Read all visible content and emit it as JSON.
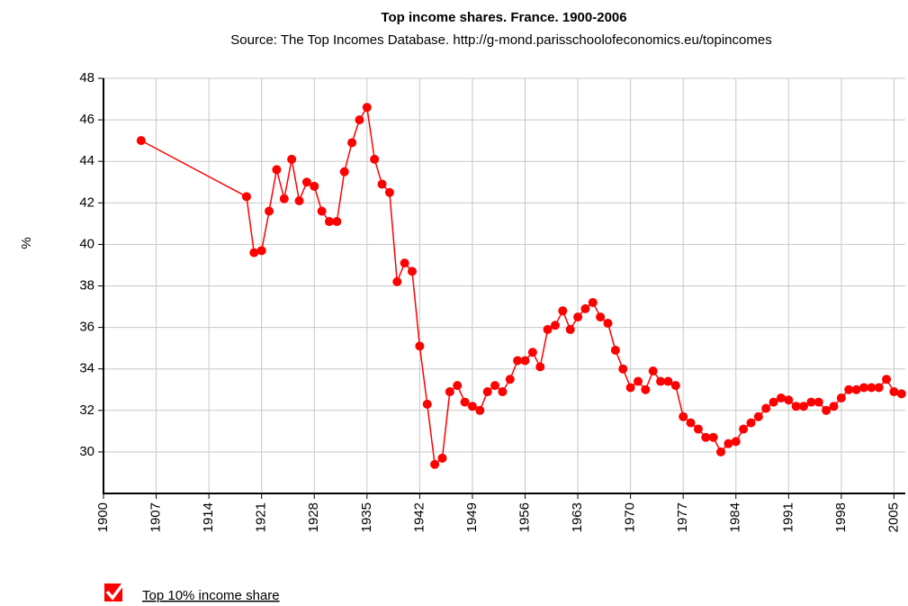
{
  "chart_data": {
    "type": "line",
    "title": "Top income shares. France. 1900-2006",
    "subtitle": "Source: The Top Incomes Database. http://g-mond.parisschoolofeconomics.eu/topincomes",
    "y_label": "%",
    "x": [
      1905,
      1919,
      1920,
      1921,
      1922,
      1923,
      1924,
      1925,
      1926,
      1927,
      1928,
      1929,
      1930,
      1931,
      1932,
      1933,
      1934,
      1935,
      1936,
      1937,
      1938,
      1939,
      1940,
      1941,
      1942,
      1943,
      1944,
      1945,
      1946,
      1947,
      1948,
      1949,
      1950,
      1951,
      1952,
      1953,
      1954,
      1955,
      1956,
      1957,
      1958,
      1959,
      1960,
      1961,
      1962,
      1963,
      1964,
      1965,
      1966,
      1967,
      1968,
      1969,
      1970,
      1971,
      1972,
      1973,
      1974,
      1975,
      1976,
      1977,
      1978,
      1979,
      1980,
      1981,
      1982,
      1983,
      1984,
      1985,
      1986,
      1987,
      1988,
      1989,
      1990,
      1991,
      1992,
      1993,
      1994,
      1995,
      1996,
      1997,
      1998,
      1999,
      2000,
      2001,
      2002,
      2003,
      2004,
      2005,
      2006
    ],
    "series": [
      {
        "name": "Top 10% income share",
        "color": "#ff0000",
        "values": [
          45.0,
          42.3,
          39.6,
          39.7,
          41.6,
          43.6,
          42.2,
          44.1,
          42.1,
          43.0,
          42.8,
          41.6,
          41.1,
          41.1,
          43.5,
          44.9,
          46.0,
          46.6,
          44.1,
          42.9,
          42.5,
          38.2,
          39.1,
          38.7,
          35.1,
          32.3,
          29.4,
          29.7,
          32.9,
          33.2,
          32.4,
          32.2,
          32.0,
          32.9,
          33.2,
          32.9,
          33.5,
          34.4,
          34.4,
          34.8,
          34.1,
          35.9,
          36.1,
          36.8,
          35.9,
          36.5,
          36.9,
          37.2,
          36.5,
          36.2,
          34.9,
          34.0,
          33.1,
          33.4,
          33.0,
          33.9,
          33.4,
          33.4,
          33.2,
          31.7,
          31.4,
          31.1,
          30.7,
          30.7,
          30.0,
          30.4,
          30.5,
          31.1,
          31.4,
          31.7,
          32.1,
          32.4,
          32.6,
          32.5,
          32.2,
          32.2,
          32.4,
          32.4,
          32.0,
          32.2,
          32.6,
          33.0,
          33.0,
          33.1,
          33.1,
          33.1,
          33.5,
          32.9,
          32.8
        ]
      }
    ],
    "xlim": [
      1900,
      2006.5
    ],
    "xticks": [
      1900,
      1907,
      1914,
      1921,
      1928,
      1935,
      1942,
      1949,
      1956,
      1963,
      1970,
      1977,
      1984,
      1991,
      1998,
      2005
    ],
    "ylim": [
      28,
      48
    ],
    "yticks": [
      30,
      32,
      34,
      36,
      38,
      40,
      42,
      44,
      46,
      48
    ],
    "grid": true
  }
}
